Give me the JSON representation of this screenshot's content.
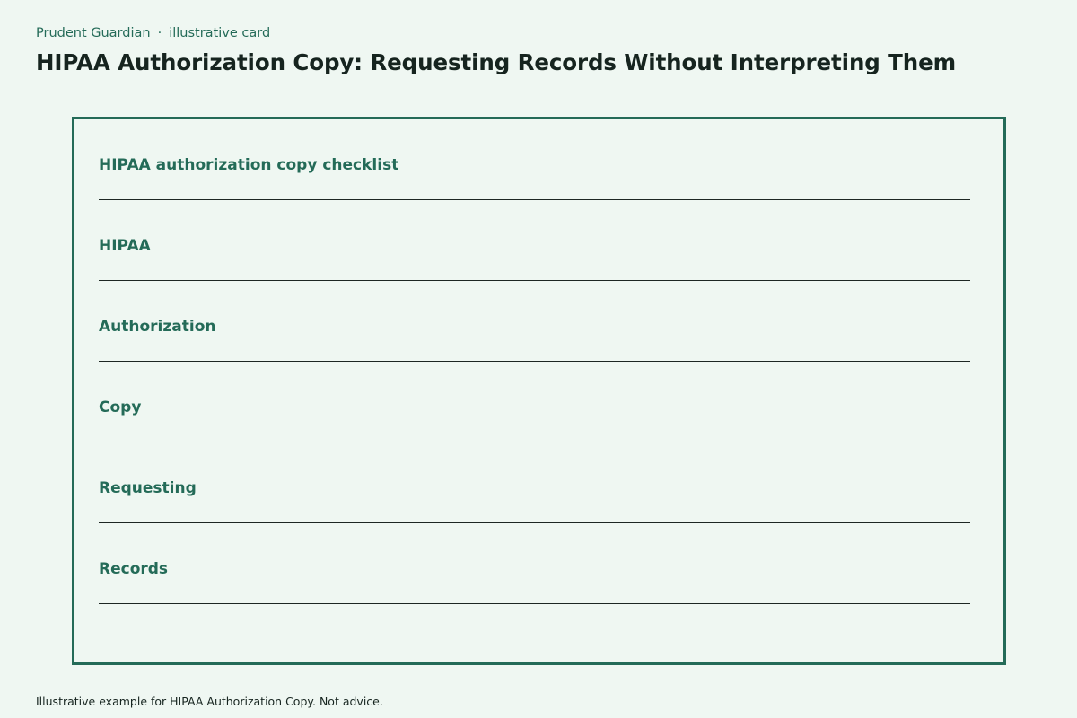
{
  "header": {
    "brand": "Prudent Guardian",
    "separator": "·",
    "kind": "illustrative card",
    "title": "HIPAA Authorization Copy: Requesting Records Without Interpreting Them"
  },
  "card": {
    "rows": [
      {
        "label": "HIPAA authorization copy checklist"
      },
      {
        "label": "HIPAA"
      },
      {
        "label": "Authorization"
      },
      {
        "label": "Copy"
      },
      {
        "label": "Requesting"
      },
      {
        "label": "Records"
      }
    ]
  },
  "footer": {
    "note": "Illustrative example for HIPAA Authorization Copy. Not advice."
  },
  "colors": {
    "background": "#eff7f2",
    "accent": "#246b58",
    "text": "#16241f",
    "rule": "#1d2723"
  }
}
